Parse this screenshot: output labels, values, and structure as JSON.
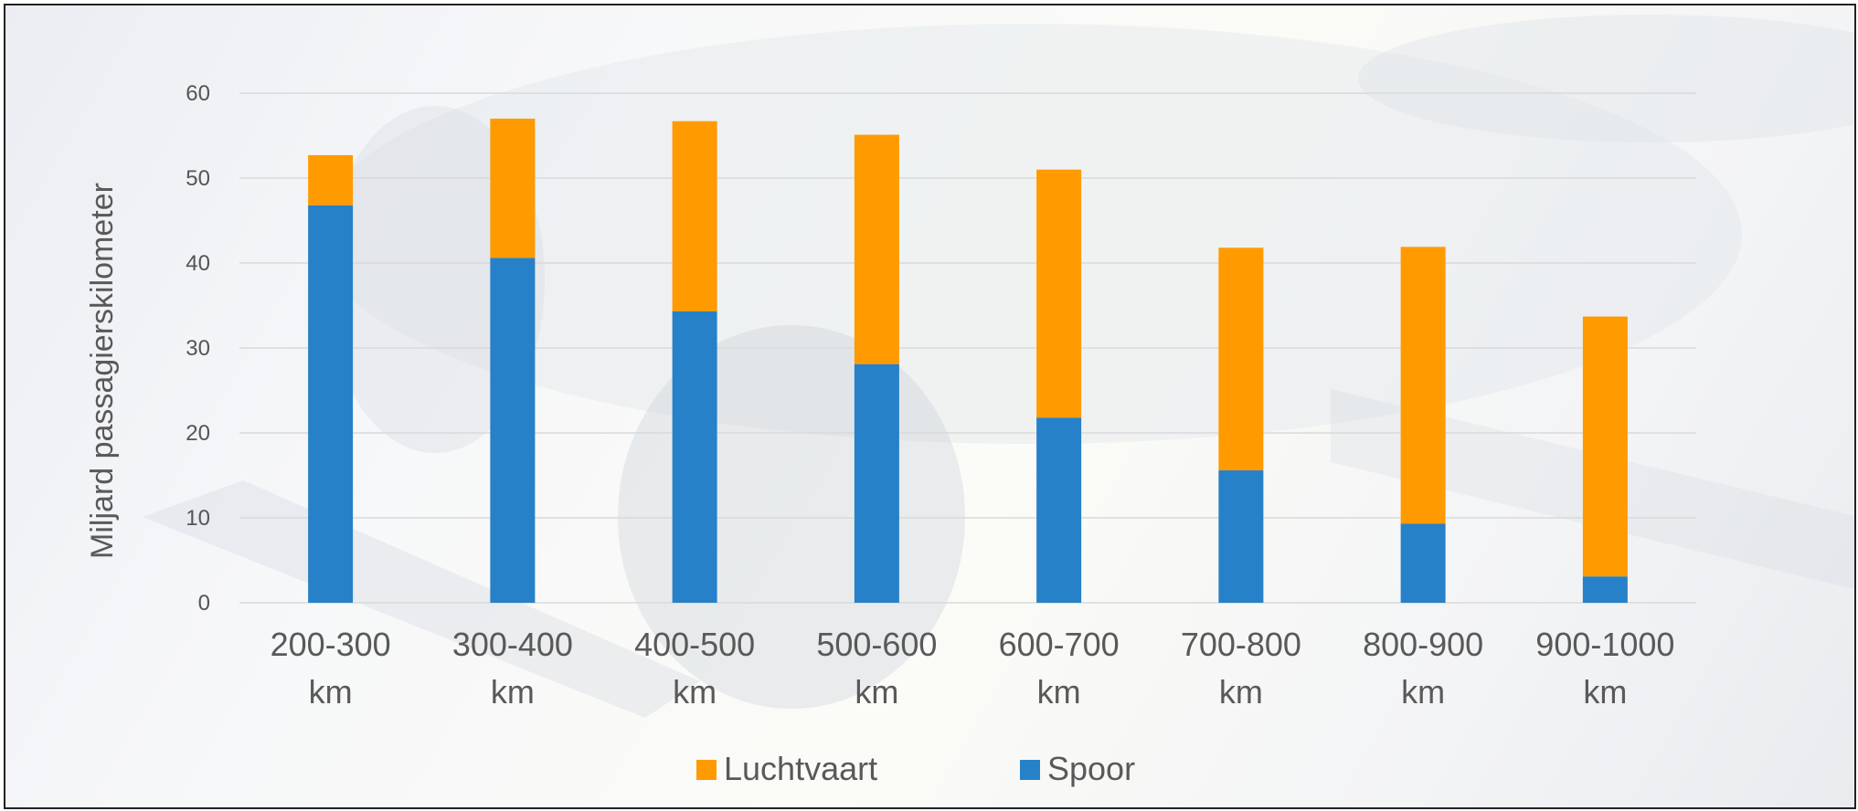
{
  "chart_data": {
    "type": "bar",
    "stacked": true,
    "categories": [
      [
        "200-300",
        "km"
      ],
      [
        "300-400",
        "km"
      ],
      [
        "400-500",
        "km"
      ],
      [
        "500-600",
        "km"
      ],
      [
        "600-700",
        "km"
      ],
      [
        "700-800",
        "km"
      ],
      [
        "800-900",
        "km"
      ],
      [
        "900-1000",
        "km"
      ]
    ],
    "series": [
      {
        "name": "Spoor",
        "color": "#2681c8",
        "values": [
          46.8,
          40.6,
          34.3,
          28.1,
          21.8,
          15.6,
          9.3,
          3.1
        ]
      },
      {
        "name": "Luchtvaart",
        "color": "#ff9a00",
        "values": [
          5.9,
          16.4,
          22.4,
          27.0,
          29.2,
          26.2,
          32.6,
          30.6
        ]
      }
    ],
    "legend_order": [
      "Luchtvaart",
      "Spoor"
    ],
    "legend_position": "bottom",
    "ylabel": "Miljard passagierskilometer",
    "ylim": [
      0,
      60
    ],
    "yticks": [
      0,
      10,
      20,
      30,
      40,
      50,
      60
    ],
    "grid": true,
    "gridline_color": "#d9d9d9"
  }
}
